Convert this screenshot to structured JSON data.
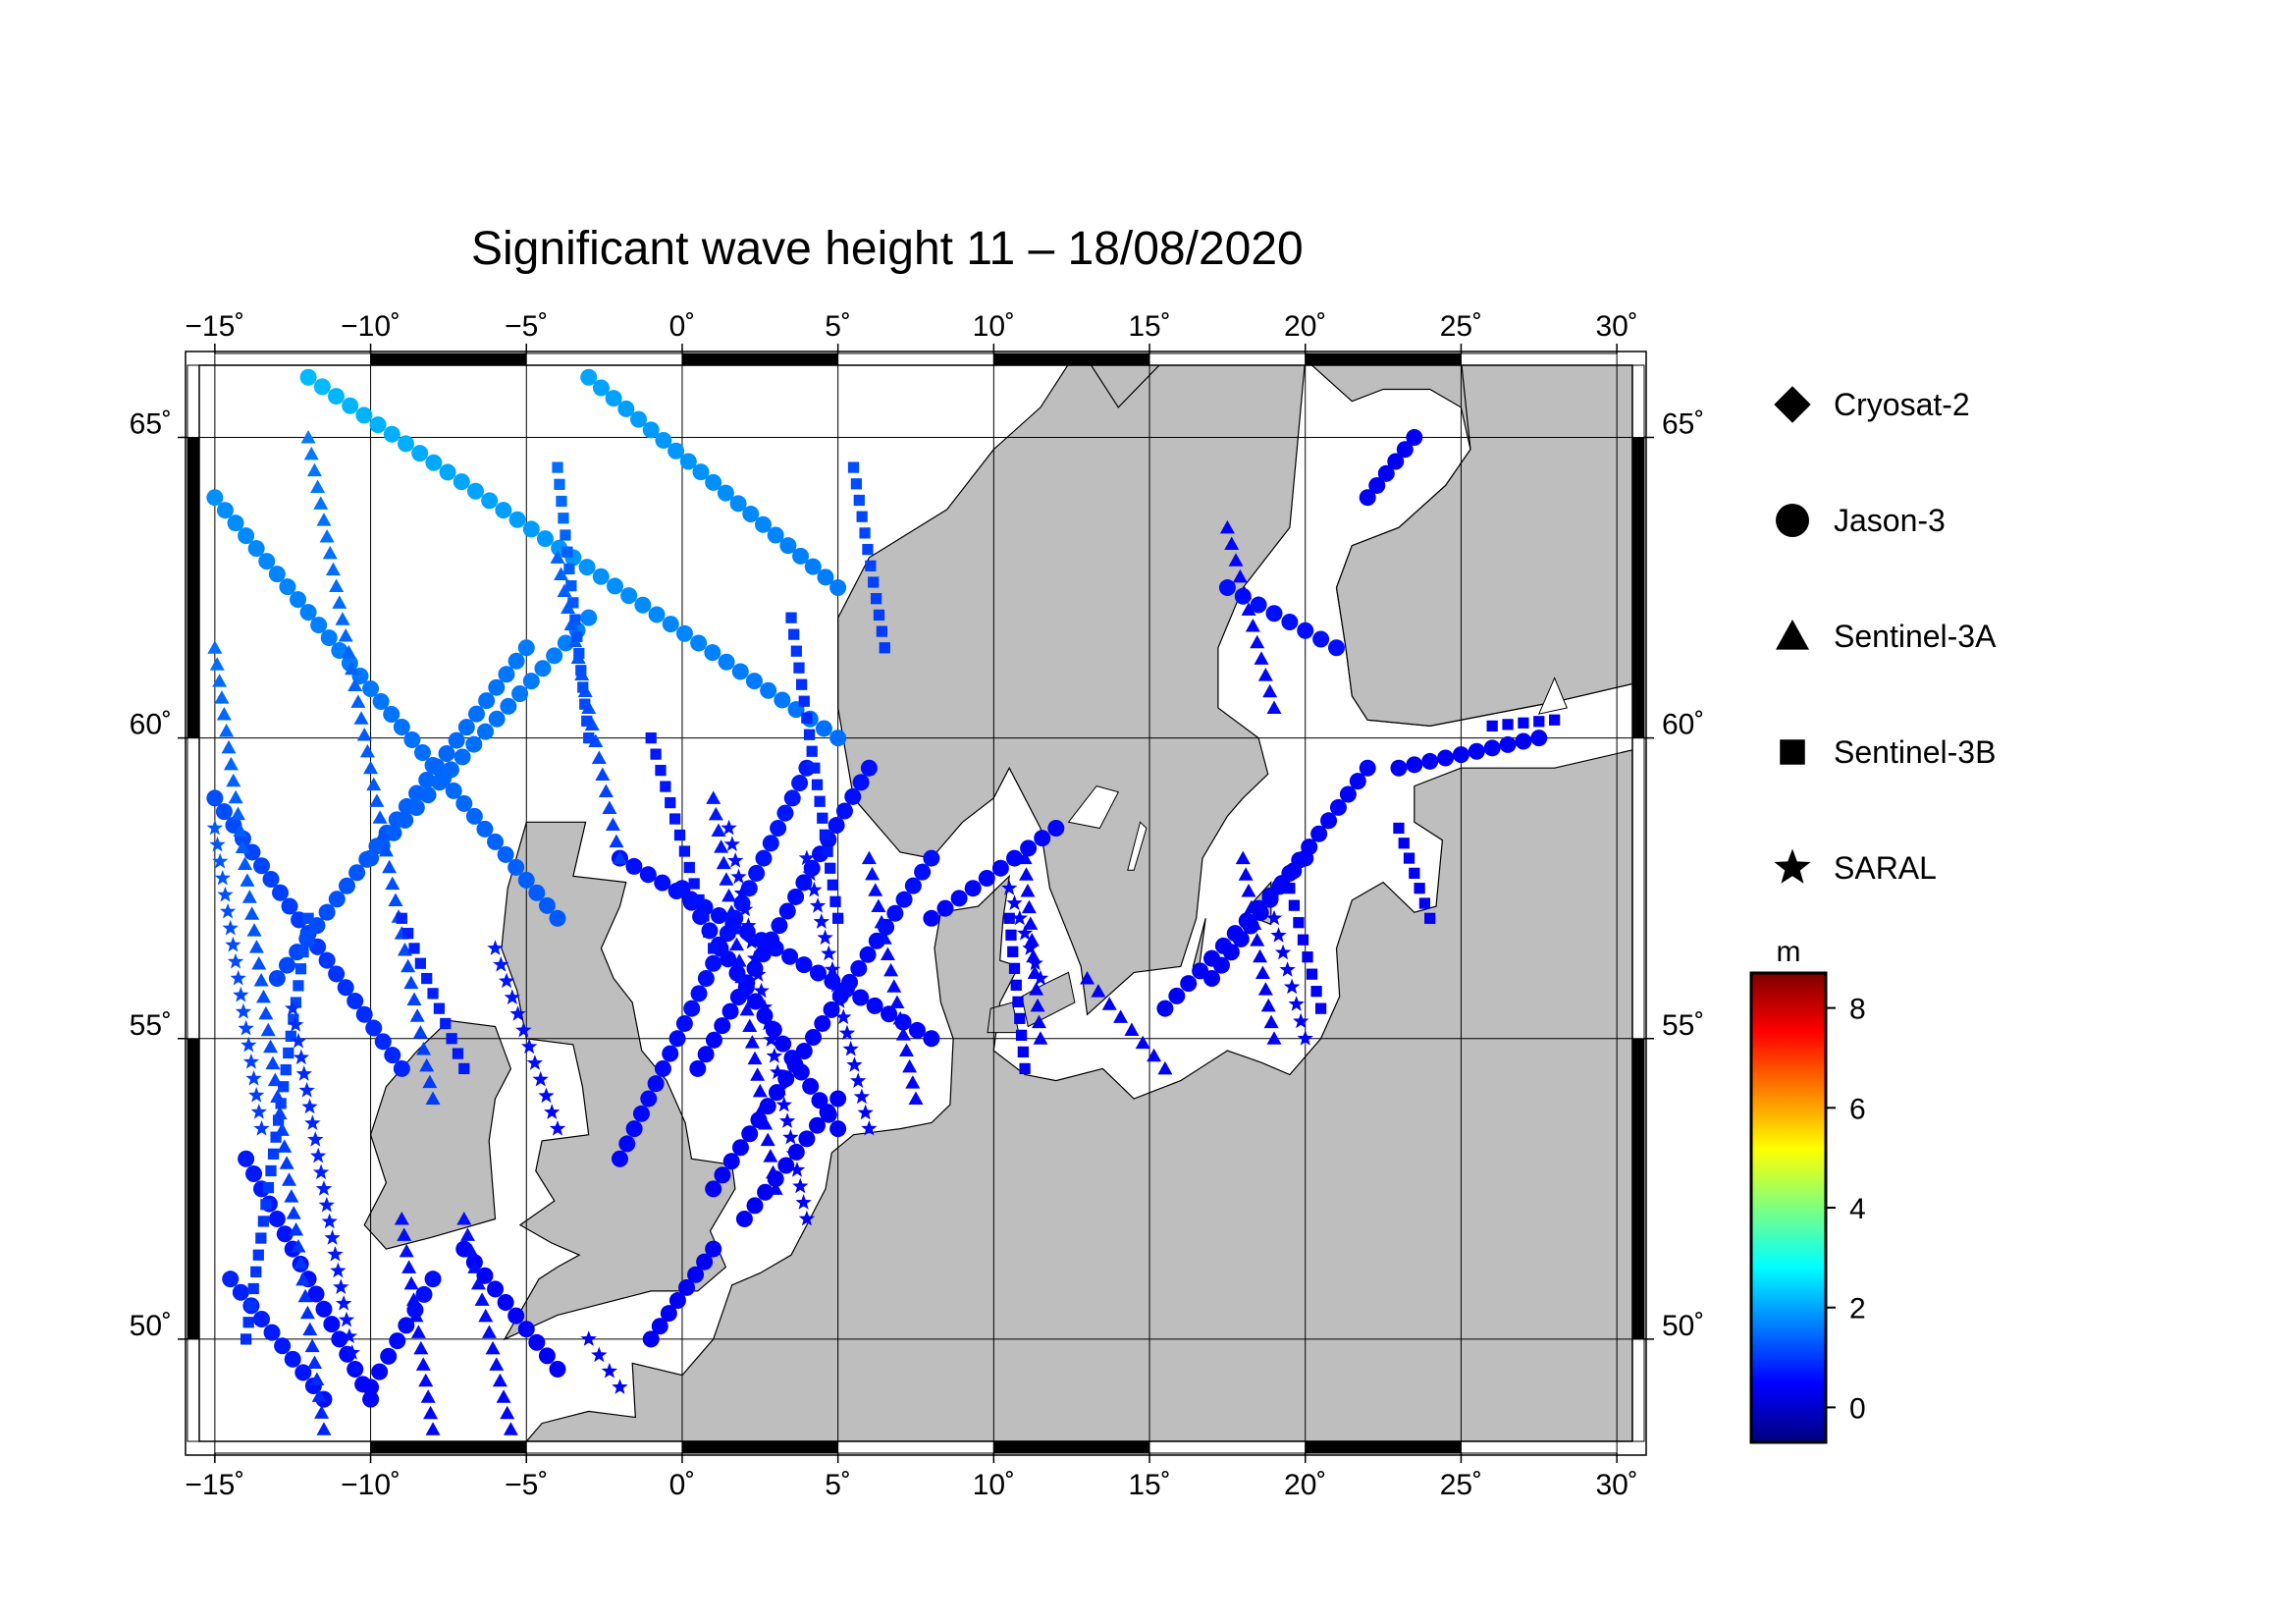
{
  "title": "Significant wave height 11 – 18/08/2020",
  "map": {
    "lon_range": [
      -15.5,
      30.5
    ],
    "lat_range": [
      48.3,
      66.2
    ],
    "lon_ticks": [
      -15,
      -10,
      -5,
      0,
      5,
      10,
      15,
      20,
      25,
      30
    ],
    "lon_tick_labels": [
      "−15˚",
      "−10˚",
      "−5˚",
      "0˚",
      "5˚",
      "10˚",
      "15˚",
      "20˚",
      "25˚",
      "30˚"
    ],
    "lat_ticks": [
      50,
      55,
      60,
      65
    ],
    "lat_tick_labels": [
      "50˚",
      "55˚",
      "60˚",
      "65˚"
    ],
    "grid": true,
    "land_color": "#bebebe",
    "sea_color": "#ffffff"
  },
  "legend": {
    "placement": "right",
    "items": [
      {
        "name": "Cryosat-2",
        "marker": "diamond"
      },
      {
        "name": "Jason-3",
        "marker": "circle"
      },
      {
        "name": "Sentinel-3A",
        "marker": "triangle"
      },
      {
        "name": "Sentinel-3B",
        "marker": "square"
      },
      {
        "name": "SARAL",
        "marker": "star"
      }
    ]
  },
  "colorbar": {
    "unit": "m",
    "range": [
      -0.7,
      8.7
    ],
    "ticks": [
      0,
      2,
      4,
      6,
      8
    ],
    "tick_labels": [
      "0",
      "2",
      "4",
      "6",
      "8"
    ],
    "colors": [
      "#00007f",
      "#0000ff",
      "#007fff",
      "#00ffff",
      "#7fff7f",
      "#ffff00",
      "#ff7f00",
      "#ff0000",
      "#7f0000"
    ]
  },
  "chart_data": {
    "type": "scatter",
    "title": "Significant wave height 11 – 18/08/2020",
    "color_value": "significant wave height (m)",
    "series": [
      {
        "name": "Jason-3",
        "marker": "circle",
        "tracks": [
          {
            "from": [
              -14.5,
              51.0
            ],
            "to": [
              -11.5,
              49.0
            ],
            "swh": [
              0.8,
              0.6
            ]
          },
          {
            "from": [
              -15.0,
              59.0
            ],
            "to": [
              -9.0,
              54.5
            ],
            "swh": [
              1.2,
              0.8
            ]
          },
          {
            "from": [
              -15.0,
              64.0
            ],
            "to": [
              -4.0,
              57.0
            ],
            "swh": [
              1.8,
              1.3
            ]
          },
          {
            "from": [
              -12.0,
              66.0
            ],
            "to": [
              5.0,
              60.0
            ],
            "swh": [
              2.2,
              1.5
            ]
          },
          {
            "from": [
              -3.0,
              66.0
            ],
            "to": [
              5.0,
              62.5
            ],
            "swh": [
              2.0,
              1.6
            ]
          },
          {
            "from": [
              -14.0,
              53.0
            ],
            "to": [
              -10.0,
              49.0
            ],
            "swh": [
              0.7,
              0.5
            ]
          },
          {
            "from": [
              -8.0,
              51.0
            ],
            "to": [
              -10.0,
              49.2
            ],
            "swh": [
              0.6,
              0.5
            ]
          },
          {
            "from": [
              -7.0,
              51.5
            ],
            "to": [
              -4.0,
              49.5
            ],
            "swh": [
              0.5,
              0.4
            ]
          },
          {
            "from": [
              -13.0,
              56.0
            ],
            "to": [
              -5.0,
              61.5
            ],
            "swh": [
              1.1,
              1.6
            ]
          },
          {
            "from": [
              -10.0,
              58.0
            ],
            "to": [
              -3.0,
              62.0
            ],
            "swh": [
              1.3,
              1.7
            ]
          },
          {
            "from": [
              -2.0,
              53.0
            ],
            "to": [
              4.0,
              59.5
            ],
            "swh": [
              0.5,
              0.7
            ]
          },
          {
            "from": [
              1.0,
              52.5
            ],
            "to": [
              8.0,
              58.0
            ],
            "swh": [
              0.4,
              0.6
            ]
          },
          {
            "from": [
              -2.0,
              58.0
            ],
            "to": [
              8.0,
              55.0
            ],
            "swh": [
              0.6,
              0.5
            ]
          },
          {
            "from": [
              0.5,
              54.5
            ],
            "to": [
              6.0,
              59.5
            ],
            "swh": [
              0.5,
              0.6
            ]
          },
          {
            "from": [
              0.0,
              57.5
            ],
            "to": [
              5.0,
              53.5
            ],
            "swh": [
              0.6,
              0.4
            ]
          },
          {
            "from": [
              2.0,
              52.0
            ],
            "to": [
              5.0,
              54.0
            ],
            "swh": [
              0.4,
              0.4
            ]
          },
          {
            "from": [
              -1.0,
              50.0
            ],
            "to": [
              1.0,
              51.5
            ],
            "swh": [
              0.4,
              0.4
            ]
          },
          {
            "from": [
              8.0,
              57.0
            ],
            "to": [
              12.0,
              58.5
            ],
            "swh": [
              0.5,
              0.5
            ]
          },
          {
            "from": [
              15.5,
              55.5
            ],
            "to": [
              20.0,
              58.0
            ],
            "swh": [
              0.4,
              0.5
            ]
          },
          {
            "from": [
              17.0,
              56.0
            ],
            "to": [
              22.0,
              59.5
            ],
            "swh": [
              0.4,
              0.5
            ]
          },
          {
            "from": [
              17.5,
              62.5
            ],
            "to": [
              21.0,
              61.5
            ],
            "swh": [
              0.6,
              0.6
            ]
          },
          {
            "from": [
              22.0,
              64.0
            ],
            "to": [
              23.5,
              65.0
            ],
            "swh": [
              0.4,
              0.4
            ]
          },
          {
            "from": [
              23.0,
              59.5
            ],
            "to": [
              27.5,
              60.0
            ],
            "swh": [
              0.4,
              0.4
            ]
          }
        ]
      },
      {
        "name": "Sentinel-3A",
        "marker": "triangle",
        "tracks": [
          {
            "from": [
              -15.0,
              61.5
            ],
            "to": [
              -11.5,
              48.5
            ],
            "swh": [
              1.5,
              0.8
            ]
          },
          {
            "from": [
              -12.0,
              65.0
            ],
            "to": [
              -8.0,
              54.0
            ],
            "swh": [
              1.6,
              1.0
            ]
          },
          {
            "from": [
              -7.0,
              52.0
            ],
            "to": [
              -5.5,
              48.5
            ],
            "swh": [
              0.6,
              0.5
            ]
          },
          {
            "from": [
              -9.0,
              52.0
            ],
            "to": [
              -8.0,
              48.5
            ],
            "swh": [
              0.6,
              0.5
            ]
          },
          {
            "from": [
              -4.0,
              63.0
            ],
            "to": [
              -2.0,
              58.0
            ],
            "swh": [
              1.4,
              1.0
            ]
          },
          {
            "from": [
              1.0,
              59.0
            ],
            "to": [
              3.0,
              52.5
            ],
            "swh": [
              0.7,
              0.4
            ]
          },
          {
            "from": [
              6.0,
              58.0
            ],
            "to": [
              7.5,
              54.0
            ],
            "swh": [
              0.6,
              0.5
            ]
          },
          {
            "from": [
              11.0,
              58.0
            ],
            "to": [
              11.5,
              55.0
            ],
            "swh": [
              0.5,
              0.4
            ]
          },
          {
            "from": [
              18.0,
              58.0
            ],
            "to": [
              19.0,
              55.0
            ],
            "swh": [
              0.4,
              0.4
            ]
          },
          {
            "from": [
              13.0,
              56.0
            ],
            "to": [
              15.5,
              54.5
            ],
            "swh": [
              0.4,
              0.4
            ]
          },
          {
            "from": [
              17.5,
              63.5
            ],
            "to": [
              19.0,
              60.5
            ],
            "swh": [
              0.5,
              0.5
            ]
          }
        ]
      },
      {
        "name": "Sentinel-3B",
        "marker": "square",
        "tracks": [
          {
            "from": [
              -14.0,
              50.0
            ],
            "to": [
              -12.0,
              57.0
            ],
            "swh": [
              0.9,
              1.2
            ]
          },
          {
            "from": [
              -9.0,
              57.0
            ],
            "to": [
              -7.0,
              54.5
            ],
            "swh": [
              0.8,
              0.7
            ]
          },
          {
            "from": [
              -4.0,
              64.5
            ],
            "to": [
              -3.0,
              60.0
            ],
            "swh": [
              1.5,
              1.1
            ]
          },
          {
            "from": [
              -1.0,
              60.0
            ],
            "to": [
              1.0,
              56.5
            ],
            "swh": [
              0.7,
              0.6
            ]
          },
          {
            "from": [
              3.5,
              62.0
            ],
            "to": [
              5.0,
              57.0
            ],
            "swh": [
              1.0,
              0.6
            ]
          },
          {
            "from": [
              5.5,
              64.5
            ],
            "to": [
              6.5,
              61.5
            ],
            "swh": [
              1.2,
              1.0
            ]
          },
          {
            "from": [
              10.5,
              57.0
            ],
            "to": [
              11.0,
              54.5
            ],
            "swh": [
              0.4,
              0.4
            ]
          },
          {
            "from": [
              19.5,
              57.5
            ],
            "to": [
              20.5,
              55.5
            ],
            "swh": [
              0.4,
              0.4
            ]
          },
          {
            "from": [
              23.0,
              58.5
            ],
            "to": [
              24.0,
              57.0
            ],
            "swh": [
              0.4,
              0.4
            ]
          },
          {
            "from": [
              26.0,
              60.2
            ],
            "to": [
              28.0,
              60.3
            ],
            "swh": [
              0.4,
              0.4
            ]
          }
        ]
      },
      {
        "name": "SARAL",
        "marker": "star",
        "tracks": [
          {
            "from": [
              -15.0,
              58.5
            ],
            "to": [
              -13.5,
              53.5
            ],
            "swh": [
              1.3,
              1.0
            ]
          },
          {
            "from": [
              -12.5,
              55.5
            ],
            "to": [
              -10.5,
              49.5
            ],
            "swh": [
              0.9,
              0.6
            ]
          },
          {
            "from": [
              -6.0,
              56.5
            ],
            "to": [
              -4.0,
              53.5
            ],
            "swh": [
              0.7,
              0.5
            ]
          },
          {
            "from": [
              1.5,
              58.5
            ],
            "to": [
              4.0,
              52.0
            ],
            "swh": [
              0.6,
              0.4
            ]
          },
          {
            "from": [
              4.0,
              58.0
            ],
            "to": [
              6.0,
              53.5
            ],
            "swh": [
              0.6,
              0.5
            ]
          },
          {
            "from": [
              10.5,
              57.5
            ],
            "to": [
              11.5,
              56.0
            ],
            "swh": [
              0.5,
              0.4
            ]
          },
          {
            "from": [
              19.0,
              57.0
            ],
            "to": [
              20.0,
              55.0
            ],
            "swh": [
              0.4,
              0.4
            ]
          },
          {
            "from": [
              -3.0,
              50.0
            ],
            "to": [
              -2.0,
              49.2
            ],
            "swh": [
              0.4,
              0.4
            ]
          }
        ]
      },
      {
        "name": "Cryosat-2",
        "marker": "diamond",
        "tracks": []
      }
    ]
  }
}
